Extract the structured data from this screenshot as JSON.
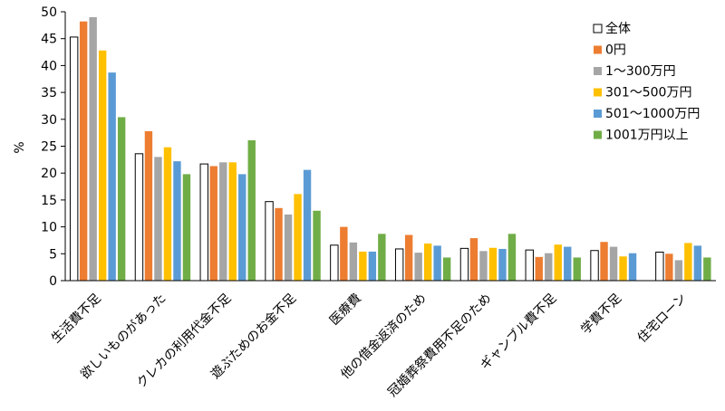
{
  "chart_data": {
    "type": "bar",
    "title": "",
    "xlabel": "",
    "ylabel": "%",
    "ylim": [
      0,
      50
    ],
    "yticks": [
      0,
      5,
      10,
      15,
      20,
      25,
      30,
      35,
      40,
      45,
      50
    ],
    "grid": false,
    "legend_position": "top-right",
    "categories": [
      "生活費不足",
      "欲しいものがあった",
      "クレカの利用代金不足",
      "遊ぶためのお金不足",
      "医療費",
      "他の借金返済のため",
      "冠婚葬祭費用不足のため",
      "ギャンブル費不足",
      "学費不足",
      "住宅ローン"
    ],
    "series": [
      {
        "name": "全体",
        "color": "#ffffff",
        "stroke": "#000000",
        "values": [
          45.3,
          23.6,
          21.7,
          14.7,
          6.6,
          5.9,
          6.0,
          5.7,
          5.6,
          5.3
        ]
      },
      {
        "name": "0円",
        "color": "#ed7d31",
        "values": [
          48.2,
          27.8,
          21.3,
          13.5,
          10.0,
          8.5,
          7.9,
          4.4,
          7.2,
          5.0
        ]
      },
      {
        "name": "1～300万円",
        "color": "#a5a5a5",
        "values": [
          49.0,
          23.0,
          22.0,
          12.3,
          7.1,
          5.2,
          5.5,
          5.1,
          6.3,
          3.8
        ]
      },
      {
        "name": "301～500万円",
        "color": "#ffc000",
        "values": [
          42.8,
          24.8,
          22.0,
          16.1,
          5.4,
          6.9,
          6.1,
          6.7,
          4.5,
          7.0
        ]
      },
      {
        "name": "501～1000万円",
        "color": "#5b9bd5",
        "values": [
          38.7,
          22.2,
          19.8,
          20.6,
          5.4,
          6.5,
          5.9,
          6.3,
          5.1,
          6.5
        ]
      },
      {
        "name": "1001万円以上",
        "color": "#70ad47",
        "values": [
          30.4,
          19.8,
          26.1,
          13.0,
          8.7,
          4.3,
          8.7,
          4.3,
          0.0,
          4.3
        ]
      }
    ]
  }
}
